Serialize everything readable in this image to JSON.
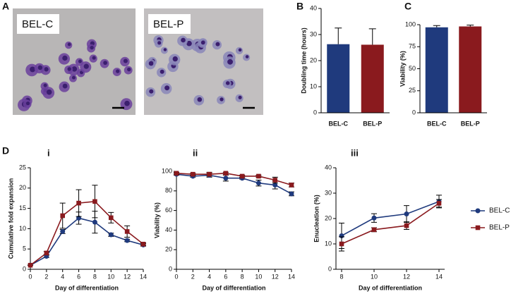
{
  "micrographs": {
    "panel": "A",
    "images": [
      {
        "label": "BEL-C"
      },
      {
        "label": "BEL-P"
      }
    ]
  },
  "group_label": "D",
  "chart_data": [
    {
      "type": "bar",
      "panel": "B",
      "ylabel": "Doubling time (hours)",
      "categories": [
        "BEL-C",
        "BEL-P"
      ],
      "values": [
        26.3,
        26.1
      ],
      "errors": [
        6.2,
        6.1
      ],
      "colors": [
        "#1f3a7d",
        "#8a1a1e"
      ],
      "ylim": [
        0,
        40
      ],
      "yticks": [
        0,
        10,
        20,
        30,
        40
      ]
    },
    {
      "type": "bar",
      "panel": "C",
      "ylabel": "Viability (%)",
      "categories": [
        "BEL-C",
        "BEL-P"
      ],
      "values": [
        97,
        98
      ],
      "errors": [
        2,
        1.5
      ],
      "colors": [
        "#1f3a7d",
        "#8a1a1e"
      ],
      "ylim": [
        0,
        100
      ],
      "yticks": [
        0,
        25,
        50,
        75,
        100
      ]
    },
    {
      "type": "line",
      "panel": "i",
      "xlabel": "Day of differentiation",
      "ylabel": "Cumulative fold expansion",
      "x": [
        0,
        2,
        4,
        6,
        8,
        10,
        12,
        14
      ],
      "xlim": [
        0,
        14
      ],
      "xticks": [
        0,
        2,
        4,
        6,
        8,
        10,
        12,
        14
      ],
      "ylim": [
        0,
        25
      ],
      "yticks": [
        0,
        5,
        10,
        15,
        20,
        25
      ],
      "series": [
        {
          "name": "BEL-C",
          "color": "#1f3a7d",
          "marker": "circle",
          "values": [
            1,
            3.2,
            9.3,
            12.6,
            11.6,
            8.5,
            7.1,
            6.0
          ],
          "errors": [
            0,
            0.3,
            0.5,
            1.5,
            2.7,
            0.4,
            0.3,
            0.3
          ]
        },
        {
          "name": "BEL-P",
          "color": "#8a1a1e",
          "marker": "square",
          "values": [
            1,
            4,
            13.2,
            16.3,
            16.7,
            12.7,
            9.3,
            6.2
          ],
          "errors": [
            0,
            0.4,
            3.1,
            3.3,
            4.0,
            1.3,
            1.4,
            0.3
          ]
        }
      ]
    },
    {
      "type": "line",
      "panel": "ii",
      "xlabel": "Day of differentiation",
      "ylabel": "Viability (%)",
      "x": [
        0,
        2,
        4,
        6,
        8,
        10,
        12,
        14
      ],
      "xlim": [
        0,
        14
      ],
      "xticks": [
        0,
        2,
        4,
        6,
        8,
        10,
        12,
        14
      ],
      "ylim": [
        0,
        100
      ],
      "yticks": [
        0,
        20,
        40,
        60,
        80,
        100
      ],
      "series": [
        {
          "name": "BEL-C",
          "color": "#1f3a7d",
          "marker": "circle",
          "values": [
            97,
            95,
            96,
            93,
            93,
            88,
            86,
            77
          ],
          "errors": [
            1,
            1,
            2,
            3,
            1,
            3,
            4,
            2
          ]
        },
        {
          "name": "BEL-P",
          "color": "#8a1a1e",
          "marker": "square",
          "values": [
            98,
            97,
            97,
            98,
            95,
            95,
            91,
            86
          ],
          "errors": [
            1,
            1,
            2,
            1,
            1,
            1,
            3,
            2
          ]
        }
      ]
    },
    {
      "type": "line",
      "panel": "iii",
      "xlabel": "Day of differentiation",
      "ylabel": "Enucleation (%)",
      "x": [
        8,
        10,
        12,
        14
      ],
      "xlim": [
        8,
        14
      ],
      "xticks": [
        8,
        10,
        12,
        14
      ],
      "ylim": [
        0,
        40
      ],
      "yticks": [
        0,
        10,
        20,
        30,
        40
      ],
      "legend": "outside-right",
      "series": [
        {
          "name": "BEL-C",
          "color": "#1f3a7d",
          "marker": "circle",
          "values": [
            13.2,
            20.2,
            21.8,
            26.7
          ],
          "errors": [
            5,
            1.7,
            3.3,
            2.5
          ]
        },
        {
          "name": "BEL-P",
          "color": "#8a1a1e",
          "marker": "square",
          "values": [
            10,
            15.6,
            17.2,
            26
          ],
          "errors": [
            2.8,
            0.8,
            1.5,
            1.5
          ]
        }
      ]
    }
  ]
}
